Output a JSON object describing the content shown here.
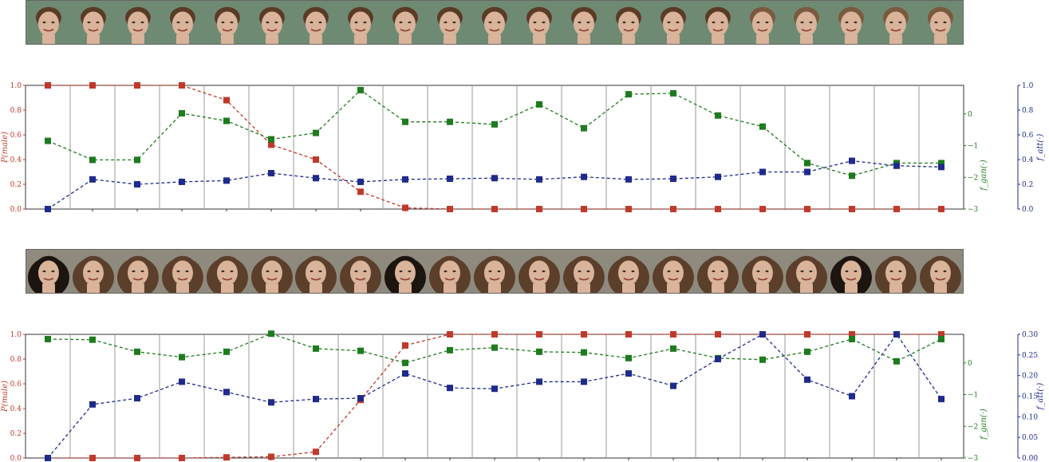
{
  "strips": {
    "top": {
      "count": 21
    },
    "bottom": {
      "count": 21
    }
  },
  "colors": {
    "red": "#c0392b",
    "green": "#1e7b1e",
    "blue": "#1f2a8c"
  },
  "chart_data": [
    {
      "type": "line",
      "x": [
        1,
        2,
        3,
        4,
        5,
        6,
        7,
        8,
        9,
        10,
        11,
        12,
        13,
        14,
        15,
        16,
        17,
        18,
        19,
        20,
        21
      ],
      "series": [
        {
          "name": "P(male)",
          "axis": "left",
          "values": [
            1.0,
            1.0,
            1.0,
            1.0,
            0.88,
            0.52,
            0.4,
            0.14,
            0.01,
            0.0,
            0.0,
            0.0,
            0.0,
            0.0,
            0.0,
            0.0,
            0.0,
            0.0,
            0.0,
            0.0,
            0.0
          ]
        },
        {
          "name": "f_gan(·)",
          "axis": "right1",
          "values": [
            -0.85,
            -1.45,
            -1.45,
            0.02,
            -0.22,
            -0.8,
            -0.6,
            0.75,
            -0.25,
            -0.25,
            -0.33,
            0.3,
            -0.45,
            0.62,
            0.65,
            -0.05,
            -0.4,
            -1.55,
            -1.95,
            -1.55,
            -1.55
          ]
        },
        {
          "name": "f_att(·)",
          "axis": "right2",
          "values": [
            0.0,
            0.24,
            0.2,
            0.22,
            0.23,
            0.29,
            0.25,
            0.22,
            0.24,
            0.245,
            0.25,
            0.24,
            0.26,
            0.24,
            0.245,
            0.26,
            0.3,
            0.3,
            0.39,
            0.35,
            0.34
          ]
        }
      ],
      "ylabel": "P(male)",
      "y2label": "f_gan(·)",
      "y3label": "f_att(·)",
      "yticks": [
        "0.0",
        "0.2",
        "0.4",
        "0.6",
        "0.8",
        "1.0"
      ],
      "y2ticks": [
        "0",
        "−1",
        "−2",
        "−3"
      ],
      "y3ticks": [
        "0.0",
        "0.2",
        "0.4",
        "0.6",
        "0.8",
        "1.0"
      ],
      "ylim": [
        0,
        1
      ],
      "y2lim": [
        -3,
        0.9
      ],
      "y3lim": [
        0,
        1
      ],
      "grid": "vertical"
    },
    {
      "type": "line",
      "x": [
        1,
        2,
        3,
        4,
        5,
        6,
        7,
        8,
        9,
        10,
        11,
        12,
        13,
        14,
        15,
        16,
        17,
        18,
        19,
        20,
        21
      ],
      "series": [
        {
          "name": "P(male)",
          "axis": "left",
          "values": [
            0.0,
            0.0,
            0.0,
            0.0,
            0.005,
            0.01,
            0.05,
            0.47,
            0.91,
            1.0,
            1.0,
            1.0,
            1.0,
            1.0,
            1.0,
            1.0,
            1.0,
            1.0,
            1.0,
            1.0,
            1.0
          ]
        },
        {
          "name": "f_gan(·)",
          "axis": "right1",
          "values": [
            0.75,
            0.73,
            0.35,
            0.18,
            0.35,
            0.92,
            0.45,
            0.38,
            0.0,
            0.4,
            0.48,
            0.35,
            0.33,
            0.15,
            0.45,
            0.15,
            0.1,
            0.35,
            0.75,
            0.05,
            0.75
          ]
        },
        {
          "name": "f_att(·)",
          "axis": "right2",
          "values": [
            0.0,
            0.13,
            0.145,
            0.185,
            0.16,
            0.135,
            0.143,
            0.145,
            0.205,
            0.17,
            0.168,
            0.185,
            0.185,
            0.205,
            0.175,
            0.24,
            0.3,
            0.19,
            0.15,
            0.3,
            0.143
          ]
        }
      ],
      "ylabel": "P(male)",
      "y2label": "f_gan(·)",
      "y3label": "f_att(·)",
      "yticks": [
        "0.0",
        "0.2",
        "0.4",
        "0.6",
        "0.8",
        "1.0"
      ],
      "y2ticks": [
        "0",
        "−1",
        "−2",
        "−3"
      ],
      "y3ticks": [
        "0.00",
        "0.05",
        "0.10",
        "0.15",
        "0.20",
        "0.25",
        "0.30"
      ],
      "ylim": [
        0,
        1
      ],
      "y2lim": [
        -3,
        0.9
      ],
      "y3lim": [
        0,
        0.3
      ],
      "grid": "vertical"
    }
  ]
}
